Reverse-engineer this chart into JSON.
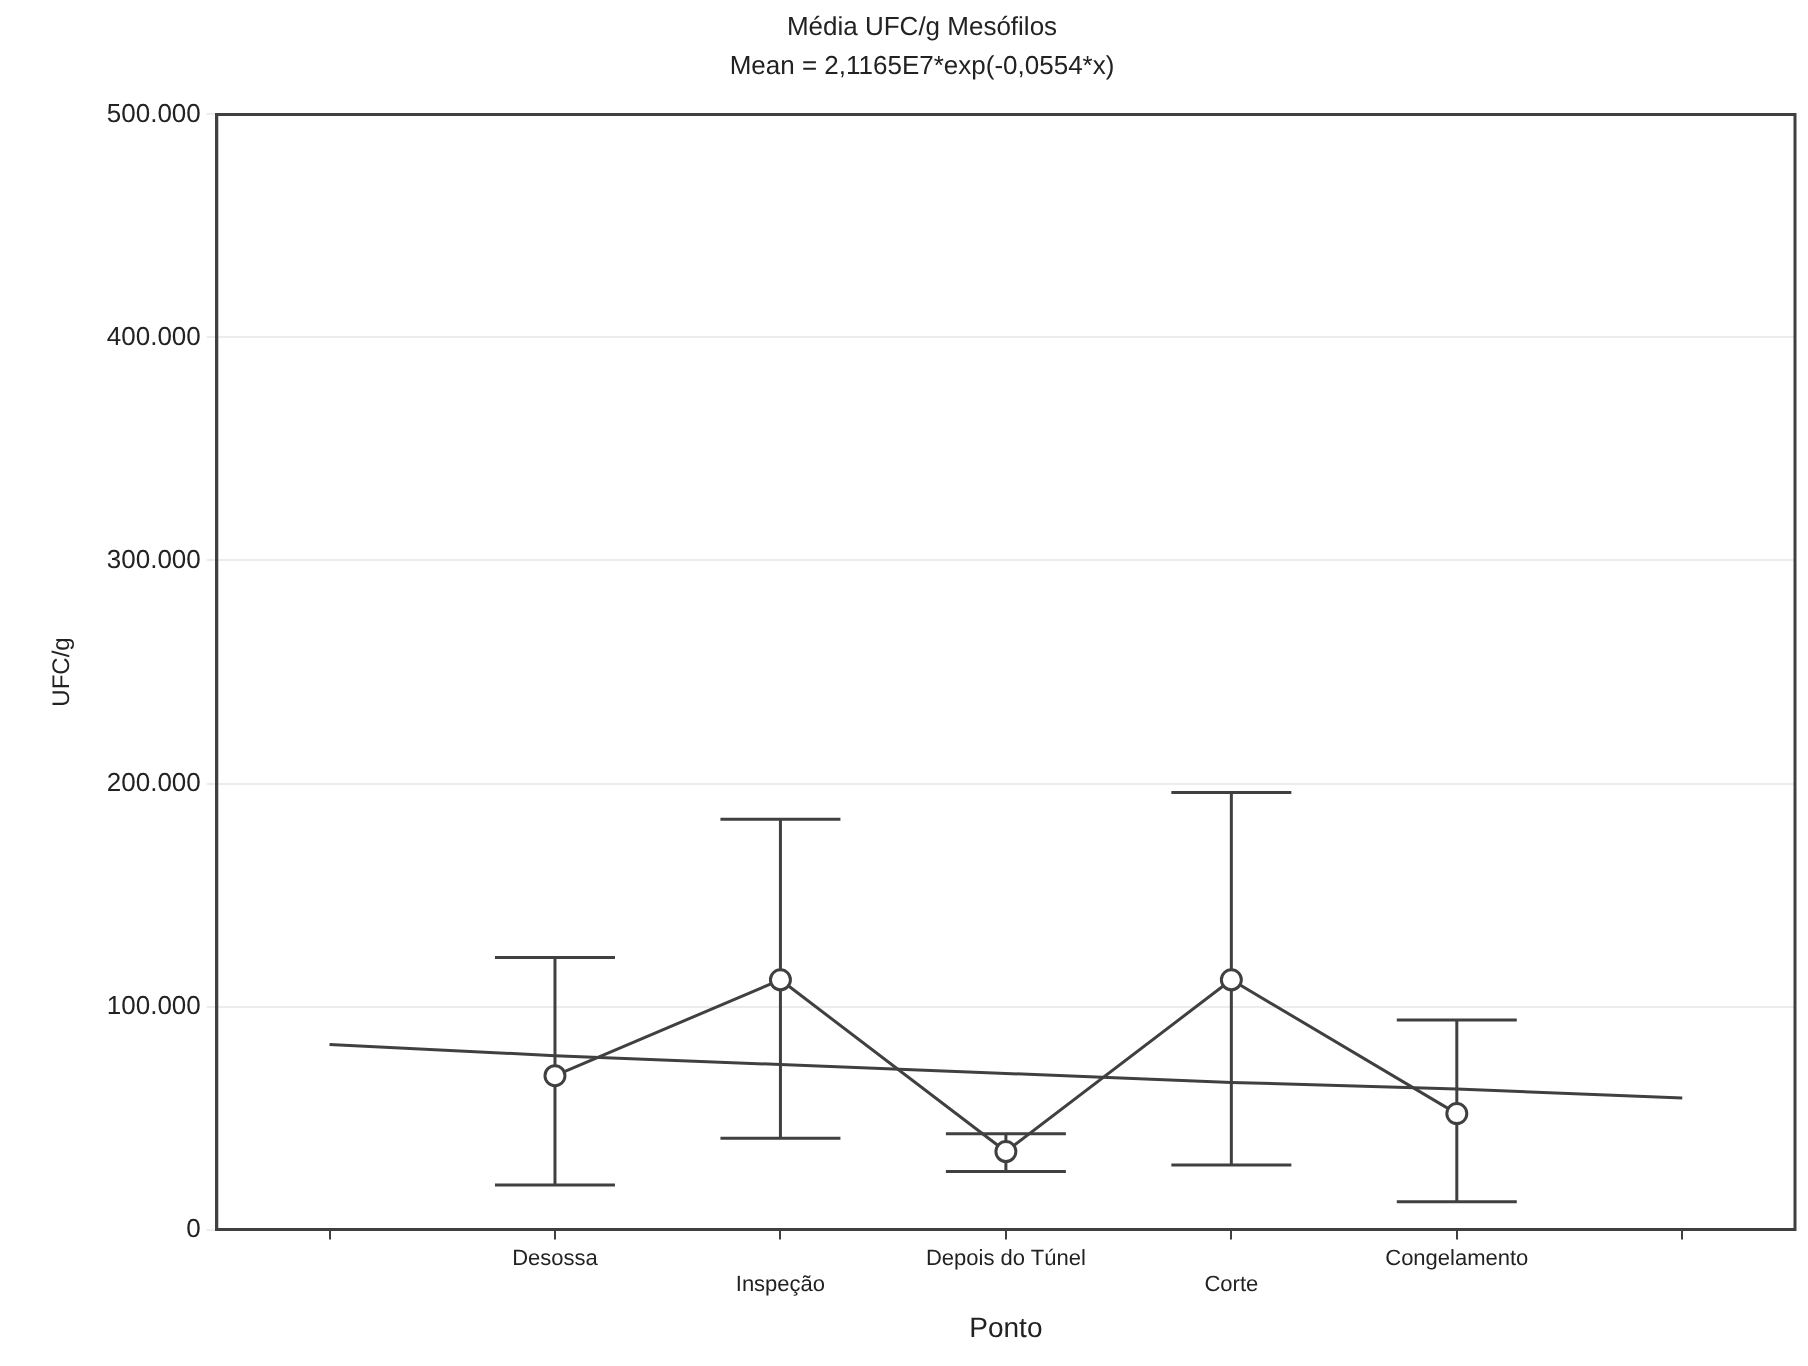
{
  "chart_data": {
    "type": "line",
    "title": "Média UFC/g Mesófilos",
    "subtitle": "Mean = 2,1165E7*exp(-0,0554*x)",
    "xlabel": "Ponto",
    "ylabel": "UFC/g",
    "categories": [
      null,
      "Desossa",
      "Inspeção",
      "Depois do Túnel",
      "Corte",
      "Congelamento",
      null
    ],
    "ylim": [
      0,
      500000
    ],
    "yticks": [
      0,
      {
        "value": 100000,
        "label": "100.000"
      },
      {
        "value": 200000,
        "label": "200.000"
      },
      {
        "value": 300000,
        "label": "300.000"
      },
      {
        "value": 400000,
        "label": "400.000"
      },
      {
        "value": 500000,
        "label": "500.000"
      }
    ],
    "grid": "y",
    "legend": false,
    "line_style": "solid",
    "series": [
      {
        "values": [
          null,
          69000,
          112000,
          35000,
          112000,
          52000,
          null
        ],
        "errors": [
          null,
          [
            20000,
            122000
          ],
          [
            41000,
            184000
          ],
          [
            26000,
            43000
          ],
          [
            29000,
            196000
          ],
          [
            12500,
            94000
          ],
          null
        ],
        "color": "#404040",
        "marker": "circle"
      },
      {
        "type": "line",
        "values": [
          83000,
          78000,
          74000,
          70000,
          66000,
          63000,
          59000
        ],
        "color": "#404040",
        "marker": "none"
      }
    ]
  }
}
